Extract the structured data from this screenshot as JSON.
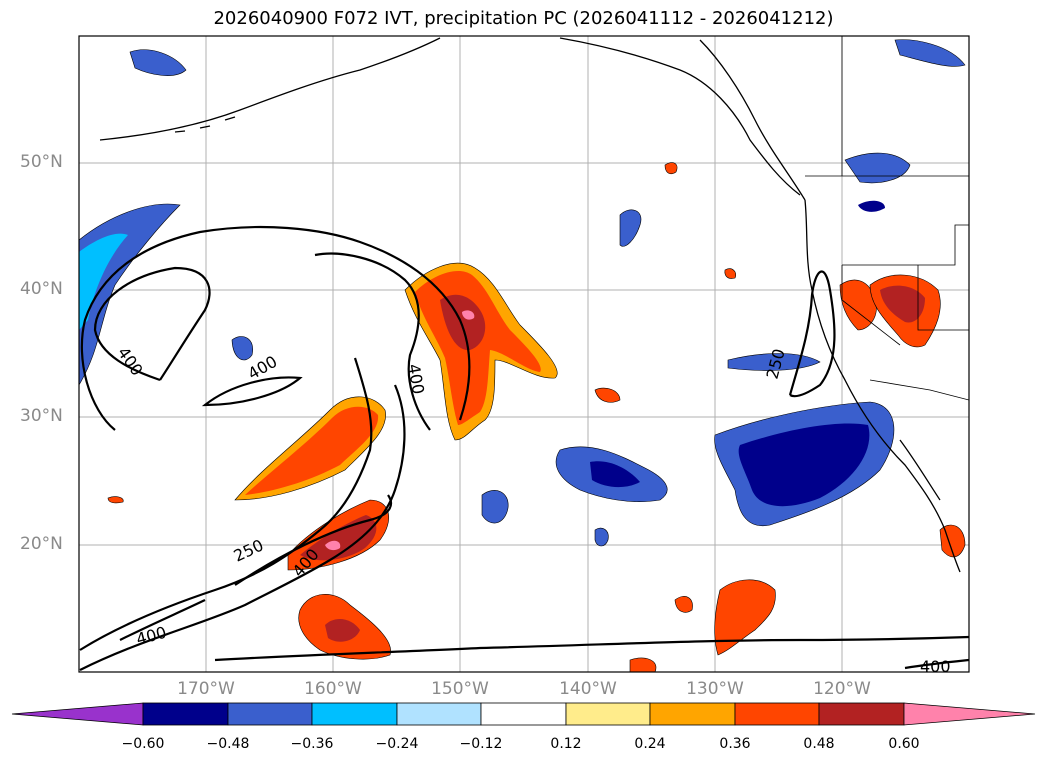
{
  "title": "2026040900 F072 IVT, precipitation PC (2026041112 - 2026041212)",
  "map": {
    "lat_labels": [
      "50°N",
      "40°N",
      "30°N",
      "20°N"
    ],
    "lon_labels": [
      "170°W",
      "160°W",
      "150°W",
      "140°W",
      "130°W",
      "120°W"
    ],
    "contour_labels": [
      "400",
      "400",
      "400",
      "250",
      "400",
      "250",
      "400"
    ]
  },
  "colorbar": {
    "labels": [
      "−0.60",
      "−0.48",
      "−0.36",
      "−0.24",
      "−0.12",
      "0.12",
      "0.24",
      "0.36",
      "0.48",
      "0.60"
    ],
    "colors": [
      "#9932cc",
      "#00008b",
      "#3a5fcd",
      "#00bfff",
      "#b0e2ff",
      "#ffffff",
      "#ffec8b",
      "#ffa500",
      "#ff4500",
      "#b22222",
      "#ff82ab"
    ]
  }
}
